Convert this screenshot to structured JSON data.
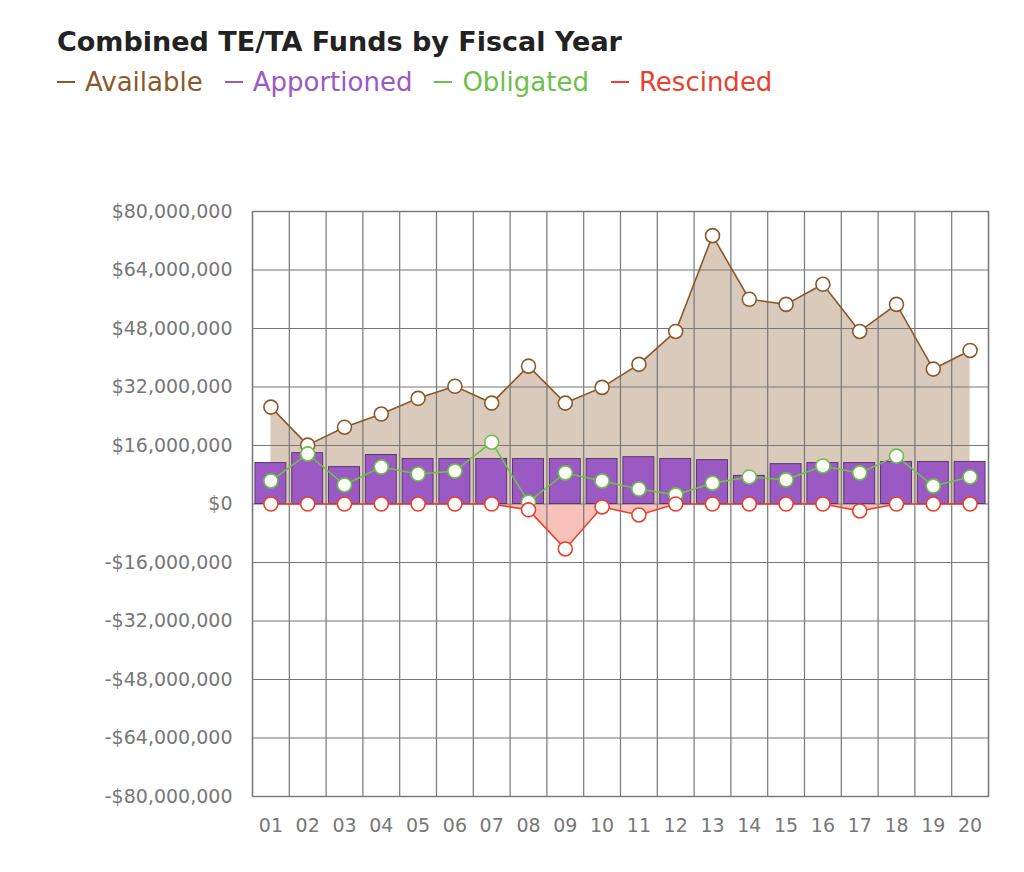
{
  "chart_data": {
    "type": "combo",
    "title": "Combined TE/TA Funds by Fiscal Year",
    "categories": [
      "01",
      "02",
      "03",
      "04",
      "05",
      "06",
      "07",
      "08",
      "09",
      "10",
      "11",
      "12",
      "13",
      "14",
      "15",
      "16",
      "17",
      "18",
      "19",
      "20"
    ],
    "series": [
      {
        "name": "Available",
        "type": "area",
        "color": "#8b5a2b",
        "marker": "circle",
        "values": [
          26500000,
          16100000,
          21000000,
          24600000,
          28900000,
          32200000,
          27600000,
          37700000,
          27600000,
          31900000,
          38200000,
          47200000,
          73400000,
          56000000,
          54600000,
          60100000,
          47200000,
          54600000,
          36900000,
          42000000
        ]
      },
      {
        "name": "Apportioned",
        "type": "bar",
        "color": "#9b59c4",
        "values": [
          11200000,
          13900000,
          10100000,
          13400000,
          12300000,
          12300000,
          12300000,
          12300000,
          12300000,
          12300000,
          12800000,
          12300000,
          12000000,
          7700000,
          10900000,
          11200000,
          11200000,
          11500000,
          11500000,
          11500000
        ]
      },
      {
        "name": "Obligated",
        "type": "line",
        "color": "#6cc04a",
        "marker": "circle",
        "values": [
          6300000,
          13700000,
          5200000,
          10100000,
          8200000,
          9000000,
          16900000,
          500000,
          8500000,
          6300000,
          4100000,
          2500000,
          5700000,
          7400000,
          6600000,
          10400000,
          8500000,
          13100000,
          4900000,
          7400000
        ]
      },
      {
        "name": "Rescinded",
        "type": "area",
        "color": "#e8412c",
        "marker": "circle",
        "values": [
          0,
          0,
          0,
          0,
          0,
          0,
          0,
          -1600000,
          -12300000,
          -800000,
          -3000000,
          0,
          0,
          0,
          0,
          0,
          -1900000,
          0,
          0,
          0
        ]
      }
    ],
    "ylim": [
      -80000000,
      80000000
    ],
    "yticks": [
      {
        "value": -80000000,
        "label": "-$80,000,000"
      },
      {
        "value": -64000000,
        "label": "-$64,000,000"
      },
      {
        "value": -48000000,
        "label": "-$48,000,000"
      },
      {
        "value": -32000000,
        "label": "-$32,000,000"
      },
      {
        "value": -16000000,
        "label": "-$16,000,000"
      },
      {
        "value": 0,
        "label": "$0"
      },
      {
        "value": 16000000,
        "label": "$16,000,000"
      },
      {
        "value": 32000000,
        "label": "$32,000,000"
      },
      {
        "value": 48000000,
        "label": "$48,000,000"
      },
      {
        "value": 64000000,
        "label": "$64,000,000"
      },
      {
        "value": 80000000,
        "label": "$80,000,000"
      }
    ],
    "grid": true,
    "legend": "top-left"
  }
}
